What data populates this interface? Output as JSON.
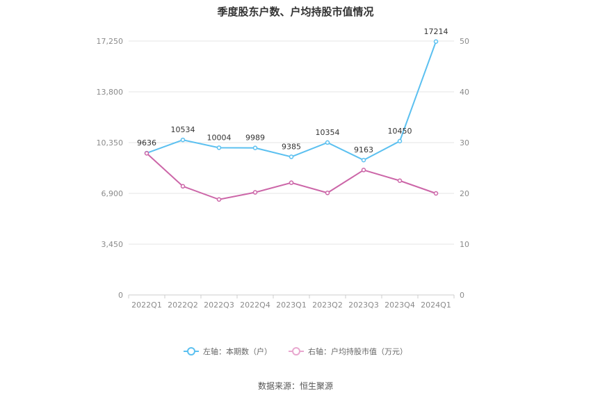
{
  "title": "季度股东户数、户均持股市值情况",
  "source": "数据来源：恒生聚源",
  "colors": {
    "left_series": "#5bc0f0",
    "right_series": "#cc66a8",
    "grid": "#e6e6e6",
    "axis": "#cccccc"
  },
  "legend": {
    "left_label": "左轴：本期数（户）",
    "right_label": "右轴：户均持股市值（万元）"
  },
  "chart_data": {
    "type": "line",
    "categories": [
      "2022Q1",
      "2022Q2",
      "2022Q3",
      "2022Q4",
      "2023Q1",
      "2023Q2",
      "2023Q3",
      "2023Q4",
      "2024Q1"
    ],
    "left_axis": {
      "ylim": [
        0,
        17250
      ],
      "ticks": [
        "0",
        "3,450",
        "6,900",
        "10,350",
        "13,800",
        "17,250"
      ],
      "tick_values": [
        0,
        3450,
        6900,
        10350,
        13800,
        17250
      ]
    },
    "right_axis": {
      "ylim": [
        0,
        50
      ],
      "ticks": [
        "0",
        "10",
        "20",
        "30",
        "40",
        "50"
      ],
      "tick_values": [
        0,
        10,
        20,
        30,
        40,
        50
      ]
    },
    "series": [
      {
        "name": "本期数（户）",
        "axis": "left",
        "values": [
          9636,
          10534,
          10004,
          9989,
          9385,
          10354,
          9163,
          10450,
          17214
        ],
        "labels": [
          "9636",
          "10534",
          "10004",
          "9989",
          "9385",
          "10354",
          "9163",
          "10450",
          "17214"
        ]
      },
      {
        "name": "户均持股市值（万元）",
        "axis": "right",
        "values": [
          27.9,
          21.4,
          18.8,
          20.2,
          22.1,
          20.1,
          24.6,
          22.5,
          20.0
        ]
      }
    ],
    "grid": true,
    "legend_position": "bottom"
  }
}
